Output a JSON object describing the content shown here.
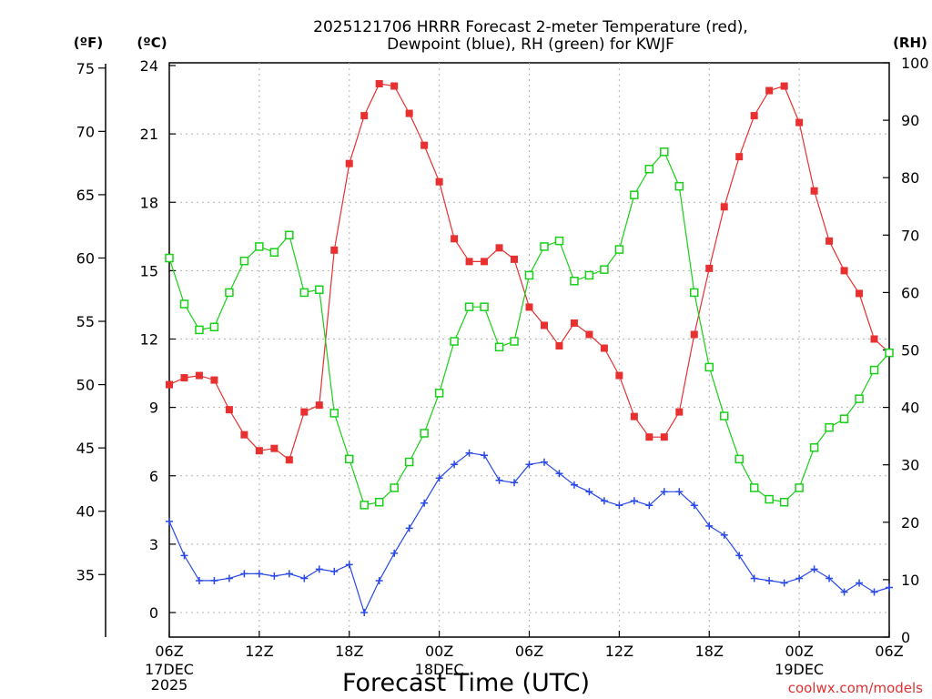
{
  "chart_data": {
    "type": "line",
    "title_line1": "2025121706 HRRR Forecast 2-meter Temperature (red),",
    "title_line2": "Dewpoint (blue), RH (green) for KWJF",
    "xlabel": "Forecast Time (UTC)",
    "credit": "coolwx.com/models",
    "unit_labels": {
      "f": "(ºF)",
      "c": "(ºC)",
      "rh": "(RH)"
    },
    "colors": {
      "temperature": "#e83030",
      "dewpoint": "#2848e8",
      "rh": "#18d018",
      "grid": "#b4b4b4"
    },
    "x_ticks": [
      {
        "hour": 0,
        "label": "06Z",
        "sub": [
          "17DEC",
          "2025"
        ]
      },
      {
        "hour": 6,
        "label": "12Z",
        "sub": []
      },
      {
        "hour": 12,
        "label": "18Z",
        "sub": []
      },
      {
        "hour": 18,
        "label": "00Z",
        "sub": [
          "18DEC"
        ]
      },
      {
        "hour": 24,
        "label": "06Z",
        "sub": []
      },
      {
        "hour": 30,
        "label": "12Z",
        "sub": []
      },
      {
        "hour": 36,
        "label": "18Z",
        "sub": []
      },
      {
        "hour": 42,
        "label": "00Z",
        "sub": [
          "19DEC"
        ]
      },
      {
        "hour": 48,
        "label": "06Z",
        "sub": []
      }
    ],
    "x_range": [
      0,
      48
    ],
    "y_left_c": {
      "range": [
        -1,
        24
      ],
      "ticks": [
        "0",
        "3",
        "6",
        "9",
        "12",
        "15",
        "18",
        "21",
        "24"
      ]
    },
    "y_left_f": {
      "ticks": [
        "35",
        "40",
        "45",
        "50",
        "55",
        "60",
        "65",
        "70",
        "75"
      ]
    },
    "y_right_rh": {
      "range": [
        0,
        100
      ],
      "ticks": [
        "0",
        "10",
        "20",
        "30",
        "40",
        "50",
        "60",
        "70",
        "80",
        "90",
        "100"
      ]
    },
    "series": [
      {
        "name": "Temperature (C)",
        "marker": "filled-square",
        "values": [
          10.0,
          10.3,
          10.4,
          10.2,
          8.9,
          7.8,
          7.1,
          7.2,
          6.7,
          8.8,
          9.1,
          15.9,
          19.7,
          21.8,
          23.2,
          23.1,
          21.9,
          20.5,
          18.9,
          16.4,
          15.4,
          15.4,
          16.0,
          15.5,
          13.4,
          12.6,
          11.7,
          12.7,
          12.2,
          11.6,
          10.4,
          8.6,
          7.7,
          7.7,
          8.8,
          12.2,
          15.1,
          17.8,
          20.0,
          21.8,
          22.9,
          23.1,
          21.5,
          18.5,
          16.3,
          15.0,
          14.0,
          12.0,
          11.4
        ]
      },
      {
        "name": "Dewpoint (C)",
        "marker": "plus",
        "values": [
          4.0,
          2.5,
          1.4,
          1.4,
          1.5,
          1.7,
          1.7,
          1.6,
          1.7,
          1.5,
          1.9,
          1.8,
          2.1,
          0.0,
          1.4,
          2.6,
          3.7,
          4.8,
          5.9,
          6.5,
          7.0,
          6.9,
          5.8,
          5.7,
          6.5,
          6.6,
          6.1,
          5.6,
          5.3,
          4.9,
          4.7,
          4.9,
          4.7,
          5.3,
          5.3,
          4.7,
          3.8,
          3.4,
          2.5,
          1.5,
          1.4,
          1.3,
          1.5,
          1.9,
          1.5,
          0.9,
          1.3,
          0.9,
          1.1
        ]
      },
      {
        "name": "RH (%)",
        "marker": "open-square",
        "values": [
          66,
          58,
          53.5,
          54,
          60,
          65.5,
          68,
          67,
          70,
          60,
          60.5,
          39,
          31,
          23,
          23.5,
          26,
          30.5,
          35.5,
          42.5,
          51.5,
          57.5,
          57.5,
          50.5,
          51.5,
          63,
          68,
          69,
          62,
          63,
          64,
          67.5,
          77,
          81.5,
          84.5,
          78.5,
          60,
          47,
          38.5,
          31,
          26,
          24,
          23.5,
          26,
          33,
          36.5,
          38,
          41.5,
          46.5,
          49.5
        ]
      }
    ]
  }
}
